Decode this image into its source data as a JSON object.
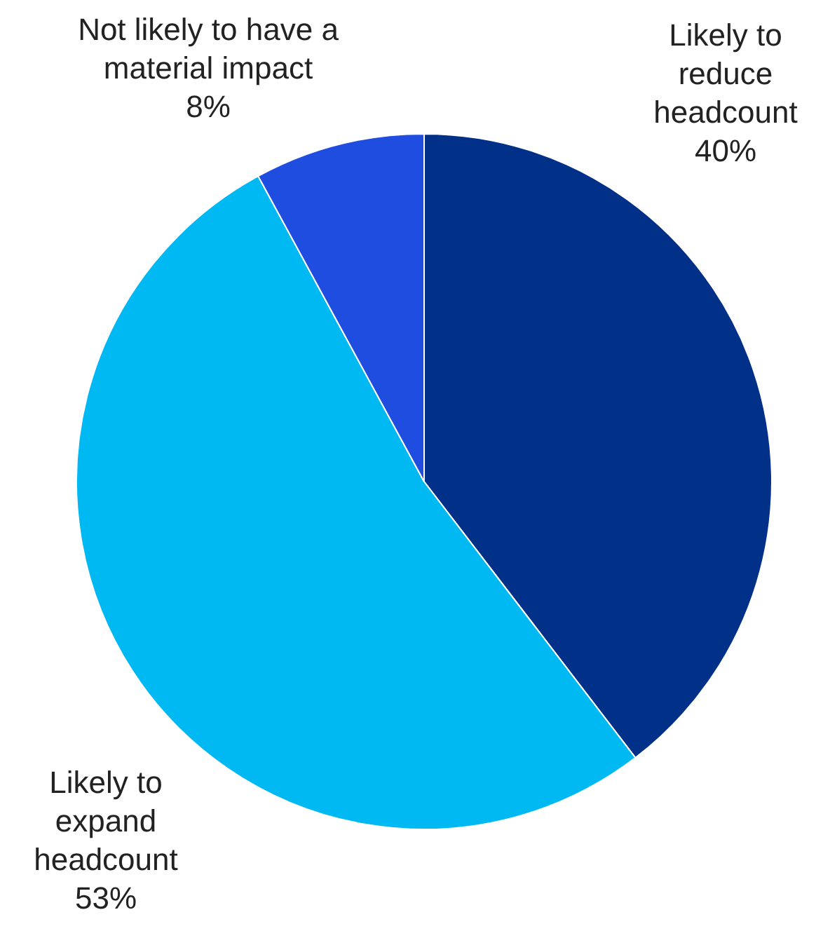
{
  "chart_data": {
    "type": "pie",
    "value_labels": [
      "40%",
      "53%",
      "8%"
    ],
    "categories": [
      "Likely to reduce headcount",
      "Likely to expand headcount",
      "Not likely to have a material impact"
    ],
    "values": [
      40,
      53,
      8
    ],
    "colors": [
      "#003087",
      "#00b9f2",
      "#1f4de0"
    ]
  }
}
